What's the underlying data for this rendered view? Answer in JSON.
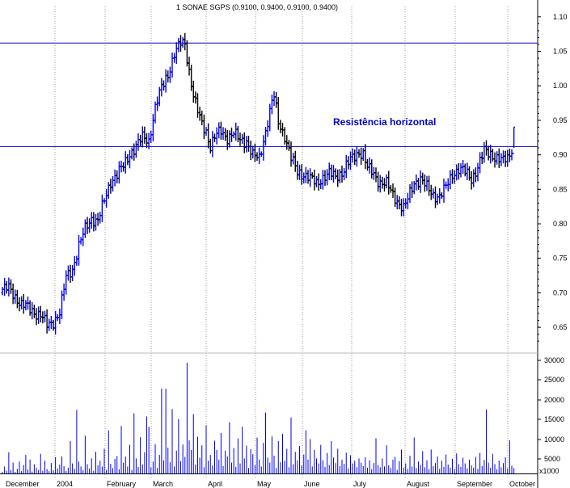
{
  "chart_data": {
    "type": "ohlc",
    "title": "1 SONAE SGPS (0.9100, 0.9400, 0.9100, 0.9400)",
    "annotation": "Resistência horizontal",
    "months": [
      "December",
      "2004",
      "February",
      "March",
      "April",
      "May",
      "June",
      "July",
      "August",
      "September",
      "October"
    ],
    "price_ticks": [
      "1.10",
      "1.05",
      "1.00",
      "0.95",
      "0.90",
      "0.85",
      "0.80",
      "0.75",
      "0.70",
      "0.65"
    ],
    "volume_ticks": [
      "30000",
      "25000",
      "20000",
      "15000",
      "10000",
      "5000"
    ],
    "volume_unit": "x1000",
    "price_range": [
      0.615,
      1.115
    ],
    "volume_range": [
      0,
      31000
    ],
    "resistance_levels": [
      1.062,
      0.912
    ],
    "colors": {
      "up": "#0000ee",
      "down": "#000000",
      "line": "#0000cc",
      "grid": "#999999",
      "volume": "#0000ee"
    },
    "price_anchors": [
      [
        0,
        0.705
      ],
      [
        3,
        0.706
      ],
      [
        6,
        0.695
      ],
      [
        9,
        0.683
      ],
      [
        12,
        0.678
      ],
      [
        15,
        0.672
      ],
      [
        18,
        0.668
      ],
      [
        21,
        0.652
      ],
      [
        24,
        0.658
      ],
      [
        27,
        0.672
      ],
      [
        30,
        0.722
      ],
      [
        33,
        0.735
      ],
      [
        36,
        0.768
      ],
      [
        39,
        0.792
      ],
      [
        42,
        0.808
      ],
      [
        45,
        0.805
      ],
      [
        48,
        0.832
      ],
      [
        51,
        0.862
      ],
      [
        54,
        0.872
      ],
      [
        57,
        0.883
      ],
      [
        60,
        0.902
      ],
      [
        63,
        0.912
      ],
      [
        66,
        0.925
      ],
      [
        69,
        0.921
      ],
      [
        72,
        0.968
      ],
      [
        75,
        0.997
      ],
      [
        78,
        1.018
      ],
      [
        81,
        1.045
      ],
      [
        84,
        1.062
      ],
      [
        86,
        1.062
      ],
      [
        88,
        1.022
      ],
      [
        90,
        0.985
      ],
      [
        92,
        0.962
      ],
      [
        94,
        0.945
      ],
      [
        96,
        0.935
      ],
      [
        98,
        0.912
      ],
      [
        100,
        0.925
      ],
      [
        103,
        0.935
      ],
      [
        106,
        0.925
      ],
      [
        109,
        0.93
      ],
      [
        112,
        0.922
      ],
      [
        115,
        0.92
      ],
      [
        118,
        0.898
      ],
      [
        121,
        0.895
      ],
      [
        124,
        0.935
      ],
      [
        127,
        0.975
      ],
      [
        128,
        0.985
      ],
      [
        130,
        0.948
      ],
      [
        133,
        0.928
      ],
      [
        136,
        0.895
      ],
      [
        139,
        0.875
      ],
      [
        142,
        0.872
      ],
      [
        145,
        0.865
      ],
      [
        148,
        0.858
      ],
      [
        151,
        0.868
      ],
      [
        154,
        0.872
      ],
      [
        157,
        0.868
      ],
      [
        160,
        0.875
      ],
      [
        163,
        0.888
      ],
      [
        166,
        0.898
      ],
      [
        168,
        0.905
      ],
      [
        170,
        0.902
      ],
      [
        172,
        0.88
      ],
      [
        175,
        0.872
      ],
      [
        178,
        0.86
      ],
      [
        181,
        0.858
      ],
      [
        184,
        0.842
      ],
      [
        187,
        0.83
      ],
      [
        189,
        0.822
      ],
      [
        191,
        0.835
      ],
      [
        194,
        0.86
      ],
      [
        197,
        0.865
      ],
      [
        200,
        0.852
      ],
      [
        203,
        0.842
      ],
      [
        206,
        0.84
      ],
      [
        209,
        0.852
      ],
      [
        212,
        0.872
      ],
      [
        215,
        0.88
      ],
      [
        218,
        0.875
      ],
      [
        221,
        0.865
      ],
      [
        224,
        0.882
      ],
      [
        227,
        0.905
      ],
      [
        230,
        0.902
      ],
      [
        233,
        0.895
      ],
      [
        236,
        0.89
      ],
      [
        239,
        0.9
      ],
      [
        241,
        0.922
      ]
    ],
    "volume_values": [
      400,
      1800,
      700,
      5500,
      900,
      2800,
      400,
      1200,
      3100,
      600,
      2200,
      4800,
      1000,
      3600,
      500,
      2400,
      1500,
      900,
      5100,
      700,
      3300,
      1100,
      600,
      2700,
      800,
      4200,
      1300,
      2300,
      4400,
      1900,
      600,
      1500,
      8400,
      2600,
      1200,
      16500,
      3100,
      1800,
      900,
      9800,
      2400,
      1300,
      3900,
      700,
      5600,
      2100,
      3300,
      1800,
      6400,
      900,
      11200,
      2500,
      1400,
      3800,
      4500,
      1100,
      12300,
      2800,
      4400,
      1800,
      7400,
      900,
      15600,
      3900,
      1700,
      9400,
      2300,
      5500,
      14800,
      12100,
      1600,
      3100,
      7600,
      1400,
      4800,
      22000,
      3400,
      22000,
      6700,
      2900,
      16700,
      1800,
      5900,
      14100,
      3200,
      7500,
      4300,
      28700,
      8600,
      6100,
      15400,
      2300,
      9500,
      4100,
      7300,
      1600,
      12500,
      3300,
      4800,
      2100,
      8500,
      6100,
      3600,
      10500,
      1900,
      5900,
      4400,
      13300,
      2800,
      6600,
      1700,
      9100,
      2600,
      12100,
      3900,
      7200,
      1400,
      6300,
      5000,
      2200,
      9300,
      3600,
      1800,
      7900,
      15800,
      4100,
      2800,
      9600,
      4600,
      1400,
      8400,
      2900,
      10300,
      3300,
      6400,
      1600,
      14500,
      2400,
      5600,
      3400,
      7100,
      2100,
      4900,
      11200,
      3600,
      8900,
      1800,
      6100,
      3900,
      2600,
      7400,
      3400,
      1700,
      5300,
      2200,
      8400,
      4100,
      2700,
      6400,
      1900,
      3600,
      2500,
      5400,
      1300,
      4700,
      2600,
      3300,
      1600,
      3900,
      2800,
      1900,
      4200,
      1500,
      3400,
      1100,
      2700,
      9100,
      2200,
      1600,
      3900,
      1800,
      7300,
      2100,
      1400,
      3600,
      4300,
      900,
      3200,
      6200,
      1500,
      2600,
      1200,
      4600,
      1800,
      9300,
      1400,
      3100,
      2200,
      5800,
      1600,
      3400,
      1100,
      6200,
      1900,
      2700,
      4400,
      1200,
      3300,
      1700,
      4900,
      2300,
      1500,
      3800,
      1100,
      5200,
      2400,
      1700,
      4100,
      2600,
      1300,
      3600,
      2100,
      1500,
      4300,
      1200,
      5300,
      1900,
      3500,
      16600,
      2800,
      1500,
      5100,
      2400,
      1100,
      3300,
      1600,
      2700,
      4200,
      1300,
      8600,
      2000,
      1400
    ]
  }
}
